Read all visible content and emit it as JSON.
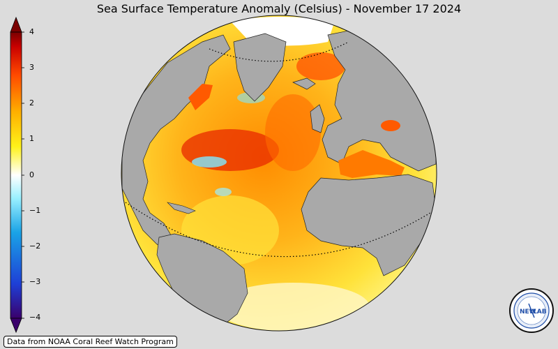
{
  "title": "Sea Surface Temperature Anomaly (Celsius) - November 17 2024",
  "colorbar": {
    "ticks": [
      "4",
      "3",
      "2",
      "1",
      "0",
      "−1",
      "−2",
      "−3",
      "−4"
    ],
    "min": -4,
    "max": 4,
    "colors": [
      "#3a006b",
      "#1e3fd6",
      "#1aa3e6",
      "#7fe8ff",
      "#ffffff",
      "#fff21a",
      "#ffb000",
      "#ff5a00",
      "#d40000",
      "#7a0000"
    ]
  },
  "credit": "Data from NOAA Coral Reef Watch Program",
  "logo": {
    "text_left": "NEW",
    "text_right": "LAB"
  },
  "map": {
    "projection": "orthographic globe centered on the Atlantic",
    "land_color": "#a9a9a9",
    "ocean_colors": {
      "warm_anomaly": "#ff7a00",
      "mild_anomaly": "#ffe23a",
      "strong_anomaly": "#d81c00",
      "cool_anomaly": "#7fe8ff"
    }
  }
}
